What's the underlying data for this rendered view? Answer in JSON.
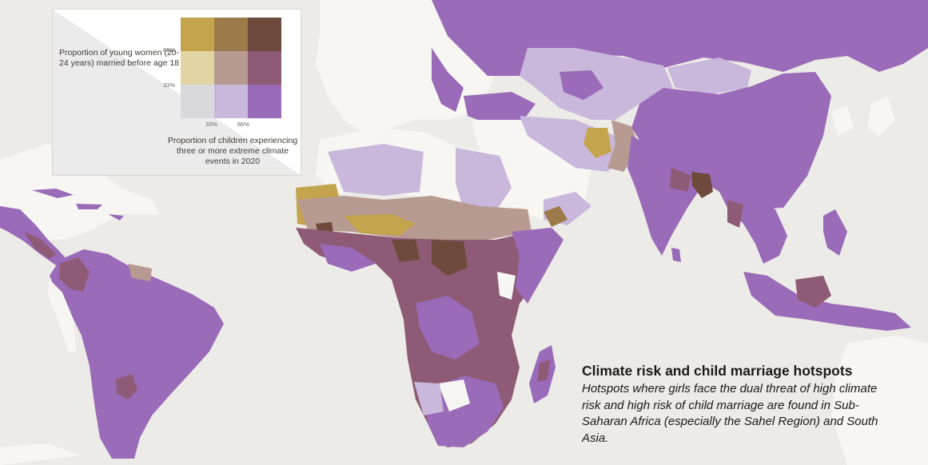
{
  "legend": {
    "y_axis_title": "Proportion of young women (20-24 years) married before age 18",
    "x_axis_title": "Proportion of children experiencing three or more extreme climate events in 2020",
    "y_ticks": [
      "66%",
      "33%"
    ],
    "x_ticks": [
      "33%",
      "66%"
    ],
    "matrix_colors": [
      [
        "#c4a54e",
        "#9c7a4a",
        "#6e4a3c"
      ],
      [
        "#e3d4a4",
        "#b79a91",
        "#8e5a75"
      ],
      [
        "#d9d9dc",
        "#c9b7dc",
        "#9a6bb8"
      ]
    ]
  },
  "caption": {
    "title": "Climate risk and child marriage hotspots",
    "subtitle": "Hotspots where girls face the dual threat of high climate risk and high risk of child marriage are found in Sub-Saharan Africa (especially the Sahel Region) and South Asia."
  },
  "colors": {
    "background": "#ecebe7",
    "no_data_land": "#f7f6f3",
    "low_low": "#d9d9dc",
    "low_marriage_mid_climate": "#c9b7dc",
    "low_marriage_high_climate": "#9a6bb8",
    "mid_marriage_low_climate": "#e3d4a4",
    "mid_mid": "#b79a91",
    "mid_marriage_high_climate": "#8e5a75",
    "high_marriage_low_climate": "#c4a54e",
    "high_marriage_mid_climate": "#9c7a4a",
    "high_high": "#6e4a3c"
  }
}
